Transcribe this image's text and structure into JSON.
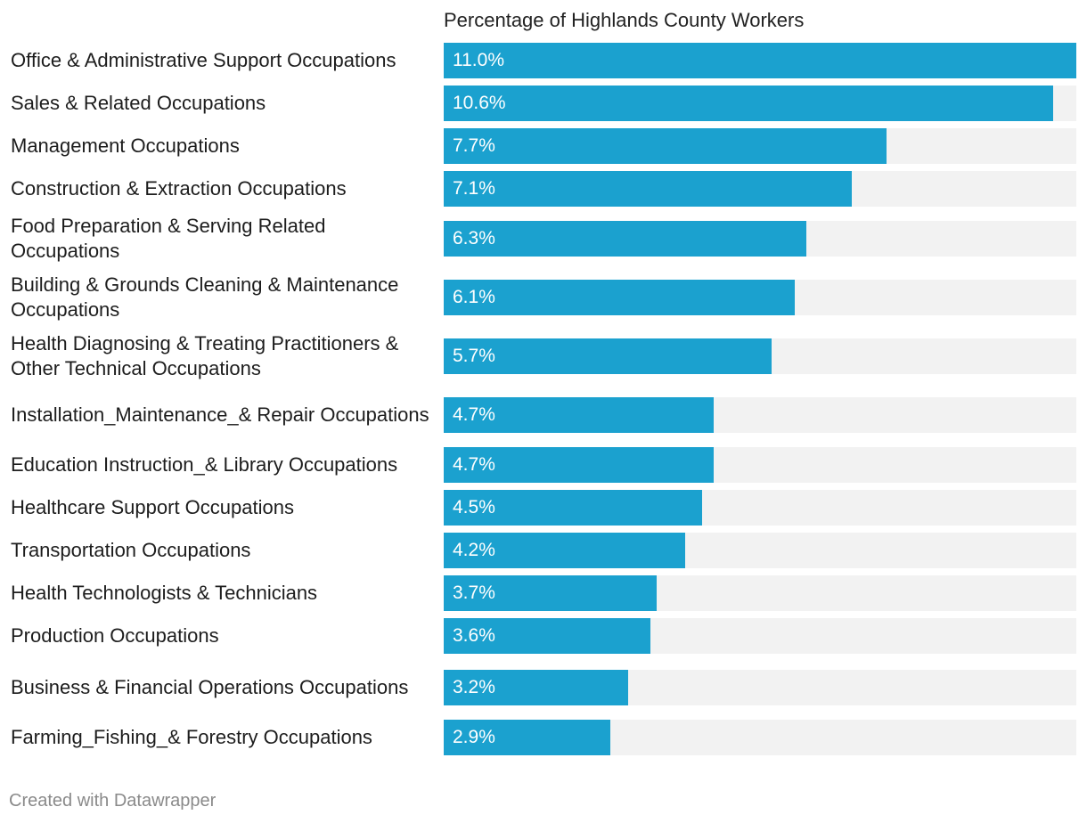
{
  "chart_data": {
    "type": "bar",
    "orientation": "horizontal",
    "column_header": "Percentage of Highlands County Workers",
    "max_value": 11.0,
    "unit": "%",
    "bar_color": "#1ba1cf",
    "track_color": "#f2f2f2",
    "categories": [
      "Office & Administrative Support Occupations",
      "Sales & Related Occupations",
      "Management Occupations",
      "Construction & Extraction Occupations",
      "Food Preparation & Serving Related Occupations",
      "Building & Grounds Cleaning & Maintenance Occupations",
      "Health Diagnosing & Treating Practitioners & Other Technical Occupations",
      "Installation_Maintenance_& Repair Occupations",
      "Education Instruction_& Library Occupations",
      "Healthcare Support Occupations",
      "Transportation Occupations",
      "Health Technologists & Technicians",
      "Production Occupations",
      "Business & Financial Operations Occupations",
      "Farming_Fishing_& Forestry Occupations"
    ],
    "values": [
      11.0,
      10.6,
      7.7,
      7.1,
      6.3,
      6.1,
      5.7,
      4.7,
      4.7,
      4.5,
      4.2,
      3.7,
      3.6,
      3.2,
      2.9
    ],
    "value_labels": [
      "11.0%",
      "10.6%",
      "7.7%",
      "7.1%",
      "6.3%",
      "6.1%",
      "5.7%",
      "4.7%",
      "4.7%",
      "4.5%",
      "4.2%",
      "3.7%",
      "3.6%",
      "3.2%",
      "2.9%"
    ]
  },
  "footer": {
    "credit": "Created with Datawrapper"
  }
}
